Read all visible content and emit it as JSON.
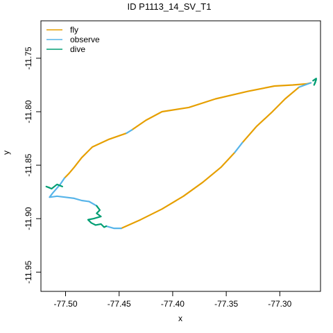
{
  "chart_data": {
    "type": "line",
    "title": "ID P1113_14_SV_T1",
    "xlabel": "x",
    "ylabel": "y",
    "xlim": [
      -77.523,
      -77.262
    ],
    "ylim": [
      -11.968,
      -11.715
    ],
    "xticks": [
      -77.5,
      -77.45,
      -77.4,
      -77.35,
      -77.3
    ],
    "xtick_labels": [
      "-77.50",
      "-77.45",
      "-77.40",
      "-77.35",
      "-77.30"
    ],
    "yticks": [
      -11.75,
      -11.8,
      -11.85,
      -11.9,
      -11.95
    ],
    "ytick_labels": [
      "-11.75",
      "-11.80",
      "-11.85",
      "-11.90",
      "-11.95"
    ],
    "grid": false,
    "legend_position": "top-left",
    "series": [
      {
        "name": "fly",
        "color": "#E69F00",
        "segments": [
          [
            [
              -77.448,
              -11.909
            ],
            [
              -77.43,
              -11.901
            ],
            [
              -77.41,
              -11.891
            ],
            [
              -77.39,
              -11.879
            ],
            [
              -77.372,
              -11.866
            ],
            [
              -77.355,
              -11.852
            ],
            [
              -77.342,
              -11.838
            ]
          ],
          [
            [
              -77.335,
              -11.829
            ],
            [
              -77.322,
              -11.814
            ],
            [
              -77.308,
              -11.801
            ],
            [
              -77.295,
              -11.788
            ],
            [
              -77.282,
              -11.777
            ]
          ],
          [
            [
              -77.271,
              -11.773
            ],
            [
              -77.275,
              -11.774
            ],
            [
              -77.288,
              -11.775
            ],
            [
              -77.305,
              -11.776
            ],
            [
              -77.33,
              -11.781
            ],
            [
              -77.36,
              -11.788
            ],
            [
              -77.385,
              -11.796
            ],
            [
              -77.41,
              -11.8
            ],
            [
              -77.425,
              -11.808
            ],
            [
              -77.438,
              -11.817
            ]
          ],
          [
            [
              -77.443,
              -11.82
            ],
            [
              -77.46,
              -11.826
            ],
            [
              -77.475,
              -11.833
            ],
            [
              -77.485,
              -11.843
            ],
            [
              -77.492,
              -11.852
            ],
            [
              -77.497,
              -11.858
            ],
            [
              -77.501,
              -11.862
            ]
          ]
        ]
      },
      {
        "name": "observe",
        "color": "#56B4E9",
        "segments": [
          [
            [
              -77.342,
              -11.838
            ],
            [
              -77.335,
              -11.829
            ]
          ],
          [
            [
              -77.282,
              -11.777
            ],
            [
              -77.271,
              -11.773
            ]
          ],
          [
            [
              -77.438,
              -11.817
            ],
            [
              -77.443,
              -11.82
            ]
          ],
          [
            [
              -77.501,
              -11.862
            ],
            [
              -77.505,
              -11.868
            ],
            [
              -77.512,
              -11.876
            ],
            [
              -77.515,
              -11.88
            ],
            [
              -77.508,
              -11.879
            ],
            [
              -77.5,
              -11.88
            ],
            [
              -77.492,
              -11.881
            ],
            [
              -77.485,
              -11.883
            ],
            [
              -77.478,
              -11.884
            ],
            [
              -77.471,
              -11.888
            ]
          ],
          [
            [
              -77.462,
              -11.907
            ],
            [
              -77.455,
              -11.909
            ],
            [
              -77.448,
              -11.909
            ]
          ]
        ]
      },
      {
        "name": "dive",
        "color": "#009E73",
        "segments": [
          [
            [
              -77.269,
              -11.771
            ],
            [
              -77.266,
              -11.769
            ],
            [
              -77.267,
              -11.773
            ],
            [
              -77.268,
              -11.775
            ],
            [
              -77.266,
              -11.77
            ]
          ],
          [
            [
              -77.515,
              -11.871
            ],
            [
              -77.518,
              -11.87
            ],
            [
              -77.513,
              -11.872
            ],
            [
              -77.508,
              -11.868
            ],
            [
              -77.503,
              -11.87
            ]
          ],
          [
            [
              -77.471,
              -11.888
            ],
            [
              -77.468,
              -11.892
            ],
            [
              -77.471,
              -11.895
            ],
            [
              -77.467,
              -11.898
            ],
            [
              -77.474,
              -11.9
            ],
            [
              -77.479,
              -11.901
            ],
            [
              -77.476,
              -11.904
            ],
            [
              -77.472,
              -11.906
            ],
            [
              -77.467,
              -11.905
            ],
            [
              -77.464,
              -11.908
            ],
            [
              -77.462,
              -11.907
            ]
          ]
        ]
      }
    ]
  }
}
